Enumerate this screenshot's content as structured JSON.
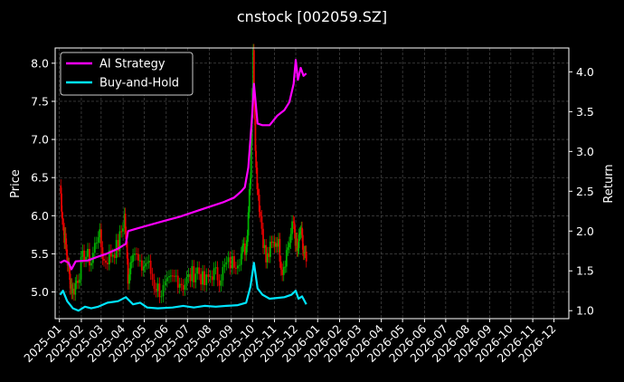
{
  "chart_data": {
    "type": "line",
    "title": "cnstock [002059.SZ]",
    "ylabel": "Price",
    "y2label": "Return",
    "ylim": [
      4.65,
      8.2
    ],
    "y2lim": [
      0.9,
      4.3
    ],
    "xlim": [
      "2024-12-26",
      "2026-12-22"
    ],
    "yticks": [
      "5.0",
      "5.5",
      "6.0",
      "6.5",
      "7.0",
      "7.5",
      "8.0"
    ],
    "y2ticks": [
      "1.0",
      "1.5",
      "2.0",
      "2.5",
      "3.0",
      "3.5",
      "4.0"
    ],
    "xticks": [
      "2025-01",
      "2025-02",
      "2025-03",
      "2025-04",
      "2025-05",
      "2025-06",
      "2025-07",
      "2025-08",
      "2025-09",
      "2025-10",
      "2025-11",
      "2025-12",
      "2026-01",
      "2026-02",
      "2026-03",
      "2026-04",
      "2026-05",
      "2026-06",
      "2026-07",
      "2026-08",
      "2026-09",
      "2026-10",
      "2026-11",
      "2026-12"
    ],
    "grid": true,
    "legend": "top-left",
    "series": [
      {
        "name": "AI Strategy",
        "axis": "right",
        "color": "#ff00ff",
        "points": [
          [
            "2025-01-02",
            1.6
          ],
          [
            "2025-01-08",
            1.63
          ],
          [
            "2025-01-14",
            1.6
          ],
          [
            "2025-01-18",
            1.52
          ],
          [
            "2025-01-24",
            1.62
          ],
          [
            "2025-02-10",
            1.63
          ],
          [
            "2025-02-25",
            1.68
          ],
          [
            "2025-03-10",
            1.72
          ],
          [
            "2025-03-25",
            1.78
          ],
          [
            "2025-04-05",
            1.84
          ],
          [
            "2025-04-08",
            2.0
          ],
          [
            "2025-04-20",
            2.03
          ],
          [
            "2025-05-10",
            2.08
          ],
          [
            "2025-05-30",
            2.13
          ],
          [
            "2025-06-20",
            2.18
          ],
          [
            "2025-07-10",
            2.24
          ],
          [
            "2025-07-30",
            2.3
          ],
          [
            "2025-08-20",
            2.36
          ],
          [
            "2025-09-05",
            2.42
          ],
          [
            "2025-09-15",
            2.5
          ],
          [
            "2025-09-20",
            2.55
          ],
          [
            "2025-09-25",
            2.8
          ],
          [
            "2025-09-30",
            3.4
          ],
          [
            "2025-10-03",
            3.85
          ],
          [
            "2025-10-08",
            3.35
          ],
          [
            "2025-10-15",
            3.33
          ],
          [
            "2025-10-25",
            3.33
          ],
          [
            "2025-11-05",
            3.45
          ],
          [
            "2025-11-15",
            3.52
          ],
          [
            "2025-11-22",
            3.62
          ],
          [
            "2025-11-28",
            3.85
          ],
          [
            "2025-12-01",
            4.15
          ],
          [
            "2025-12-04",
            3.9
          ],
          [
            "2025-12-08",
            4.05
          ],
          [
            "2025-12-12",
            3.95
          ],
          [
            "2025-12-16",
            3.98
          ]
        ]
      },
      {
        "name": "Buy-and-Hold",
        "axis": "right",
        "color": "#00e5ff",
        "points": [
          [
            "2025-01-02",
            1.2
          ],
          [
            "2025-01-06",
            1.25
          ],
          [
            "2025-01-12",
            1.12
          ],
          [
            "2025-01-20",
            1.03
          ],
          [
            "2025-01-28",
            1.0
          ],
          [
            "2025-02-06",
            1.05
          ],
          [
            "2025-02-15",
            1.03
          ],
          [
            "2025-02-25",
            1.05
          ],
          [
            "2025-03-10",
            1.1
          ],
          [
            "2025-03-25",
            1.12
          ],
          [
            "2025-04-05",
            1.17
          ],
          [
            "2025-04-15",
            1.08
          ],
          [
            "2025-04-25",
            1.1
          ],
          [
            "2025-05-05",
            1.04
          ],
          [
            "2025-05-20",
            1.03
          ],
          [
            "2025-06-10",
            1.04
          ],
          [
            "2025-06-25",
            1.06
          ],
          [
            "2025-07-10",
            1.04
          ],
          [
            "2025-07-25",
            1.06
          ],
          [
            "2025-08-10",
            1.05
          ],
          [
            "2025-08-25",
            1.06
          ],
          [
            "2025-09-10",
            1.07
          ],
          [
            "2025-09-22",
            1.1
          ],
          [
            "2025-09-28",
            1.3
          ],
          [
            "2025-10-03",
            1.6
          ],
          [
            "2025-10-08",
            1.28
          ],
          [
            "2025-10-15",
            1.2
          ],
          [
            "2025-10-25",
            1.15
          ],
          [
            "2025-11-05",
            1.16
          ],
          [
            "2025-11-15",
            1.17
          ],
          [
            "2025-11-25",
            1.2
          ],
          [
            "2025-12-01",
            1.25
          ],
          [
            "2025-12-05",
            1.15
          ],
          [
            "2025-12-10",
            1.18
          ],
          [
            "2025-12-16",
            1.08
          ]
        ]
      },
      {
        "name": "Price",
        "axis": "left",
        "type": "candlestick",
        "up_color": "#00b300",
        "down_color": "#e60000",
        "points": [
          [
            "2025-01-02",
            6.4
          ],
          [
            "2025-01-06",
            5.9
          ],
          [
            "2025-01-10",
            5.6
          ],
          [
            "2025-01-15",
            5.2
          ],
          [
            "2025-01-20",
            5.0
          ],
          [
            "2025-01-27",
            5.2
          ],
          [
            "2025-02-05",
            5.5
          ],
          [
            "2025-02-15",
            5.4
          ],
          [
            "2025-02-25",
            5.8
          ],
          [
            "2025-03-05",
            5.4
          ],
          [
            "2025-03-15",
            5.5
          ],
          [
            "2025-03-25",
            5.6
          ],
          [
            "2025-04-03",
            6.0
          ],
          [
            "2025-04-08",
            5.2
          ],
          [
            "2025-04-15",
            5.6
          ],
          [
            "2025-04-25",
            5.3
          ],
          [
            "2025-05-05",
            5.4
          ],
          [
            "2025-05-15",
            5.1
          ],
          [
            "2025-05-25",
            5.0
          ],
          [
            "2025-06-05",
            5.1
          ],
          [
            "2025-06-15",
            5.2
          ],
          [
            "2025-06-25",
            5.1
          ],
          [
            "2025-07-05",
            5.2
          ],
          [
            "2025-07-15",
            5.3
          ],
          [
            "2025-07-25",
            5.1
          ],
          [
            "2025-08-05",
            5.25
          ],
          [
            "2025-08-15",
            5.2
          ],
          [
            "2025-08-25",
            5.35
          ],
          [
            "2025-09-05",
            5.4
          ],
          [
            "2025-09-15",
            5.5
          ],
          [
            "2025-09-22",
            5.6
          ],
          [
            "2025-09-28",
            6.6
          ],
          [
            "2025-10-02",
            8.1
          ],
          [
            "2025-10-06",
            6.6
          ],
          [
            "2025-10-12",
            6.0
          ],
          [
            "2025-10-20",
            5.4
          ],
          [
            "2025-10-28",
            5.6
          ],
          [
            "2025-11-05",
            5.7
          ],
          [
            "2025-11-12",
            5.3
          ],
          [
            "2025-11-20",
            5.6
          ],
          [
            "2025-11-28",
            5.9
          ],
          [
            "2025-12-03",
            5.5
          ],
          [
            "2025-12-08",
            5.8
          ],
          [
            "2025-12-12",
            5.5
          ],
          [
            "2025-12-16",
            5.4
          ]
        ]
      }
    ]
  }
}
